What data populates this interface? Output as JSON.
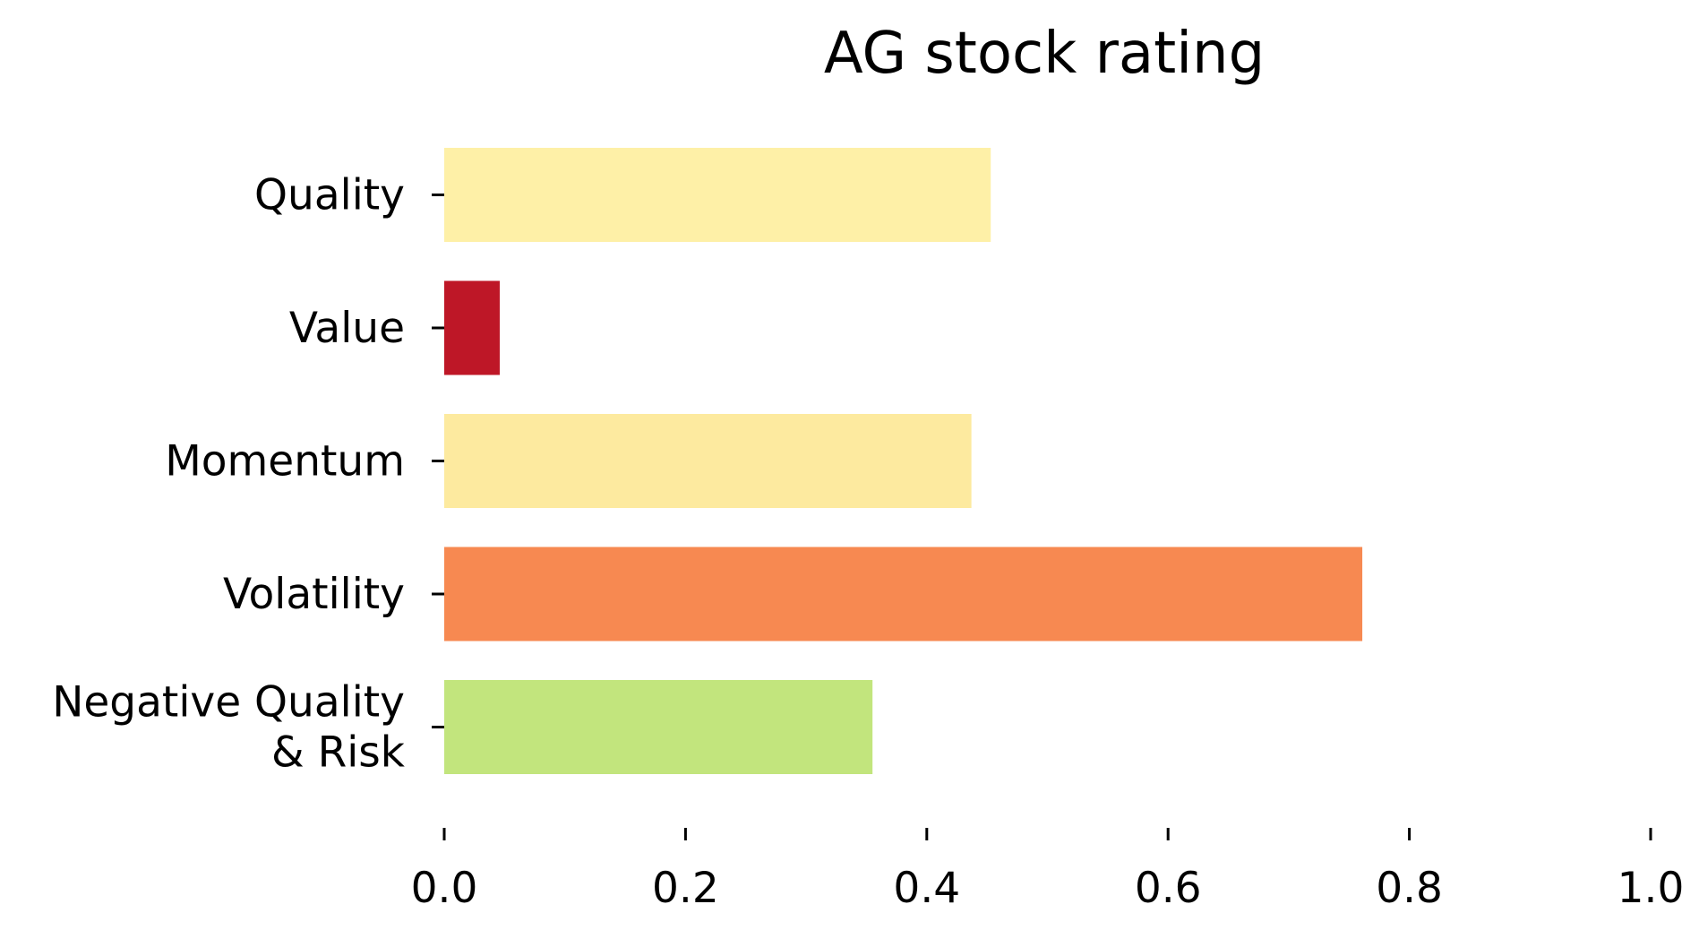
{
  "chart_data": {
    "type": "bar",
    "orientation": "horizontal",
    "title": "AG stock rating",
    "xlabel": "",
    "ylabel": "",
    "categories": [
      "Quality",
      "Value",
      "Momentum",
      "Volatility",
      "Negative Quality\n& Risk"
    ],
    "values": [
      0.453,
      0.046,
      0.437,
      0.761,
      0.355
    ],
    "colors": [
      "#fef0a7",
      "#be1727",
      "#fdea9f",
      "#f78951",
      "#c2e57d"
    ],
    "xlim": [
      0.0,
      1.0
    ],
    "xticks": [
      "0.0",
      "0.2",
      "0.4",
      "0.6",
      "0.8",
      "1.0"
    ],
    "grid": false,
    "legend": "none"
  }
}
